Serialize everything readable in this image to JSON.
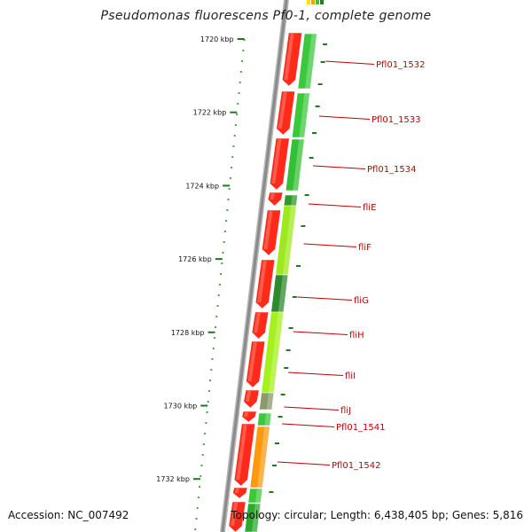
{
  "title": "Pseudomonas fluorescens Pf0-1, complete genome",
  "footer": {
    "accession": "Accession: NC_007492",
    "summary": "Topology: circular; Length: 6,438,405 bp; Genes: 5,816"
  },
  "colors": {
    "forward_gene": "#ff2a1a",
    "reverse_gene": "#3cc83c",
    "label": "#c00000",
    "tick": "#1e7a1e",
    "backbone": "#8a8a8a"
  },
  "ruler": {
    "labels": [
      "1720 kbp",
      "1722 kbp",
      "1724 kbp",
      "1726 kbp",
      "1728 kbp",
      "1730 kbp",
      "1732 kbp"
    ]
  },
  "genes": [
    {
      "name": "Pfl01_1532",
      "strand": "-"
    },
    {
      "name": "Pfl01_1533",
      "strand": "-"
    },
    {
      "name": "Pfl01_1534",
      "strand": "-"
    },
    {
      "name": "fliE",
      "strand": "-"
    },
    {
      "name": "fliF",
      "strand": "-"
    },
    {
      "name": "fliG",
      "strand": "-"
    },
    {
      "name": "fliH",
      "strand": "-"
    },
    {
      "name": "fliI",
      "strand": "-"
    },
    {
      "name": "fliJ",
      "strand": "-"
    },
    {
      "name": "Pfl01_1541",
      "strand": "-"
    },
    {
      "name": "Pfl01_1542",
      "strand": "-"
    }
  ]
}
